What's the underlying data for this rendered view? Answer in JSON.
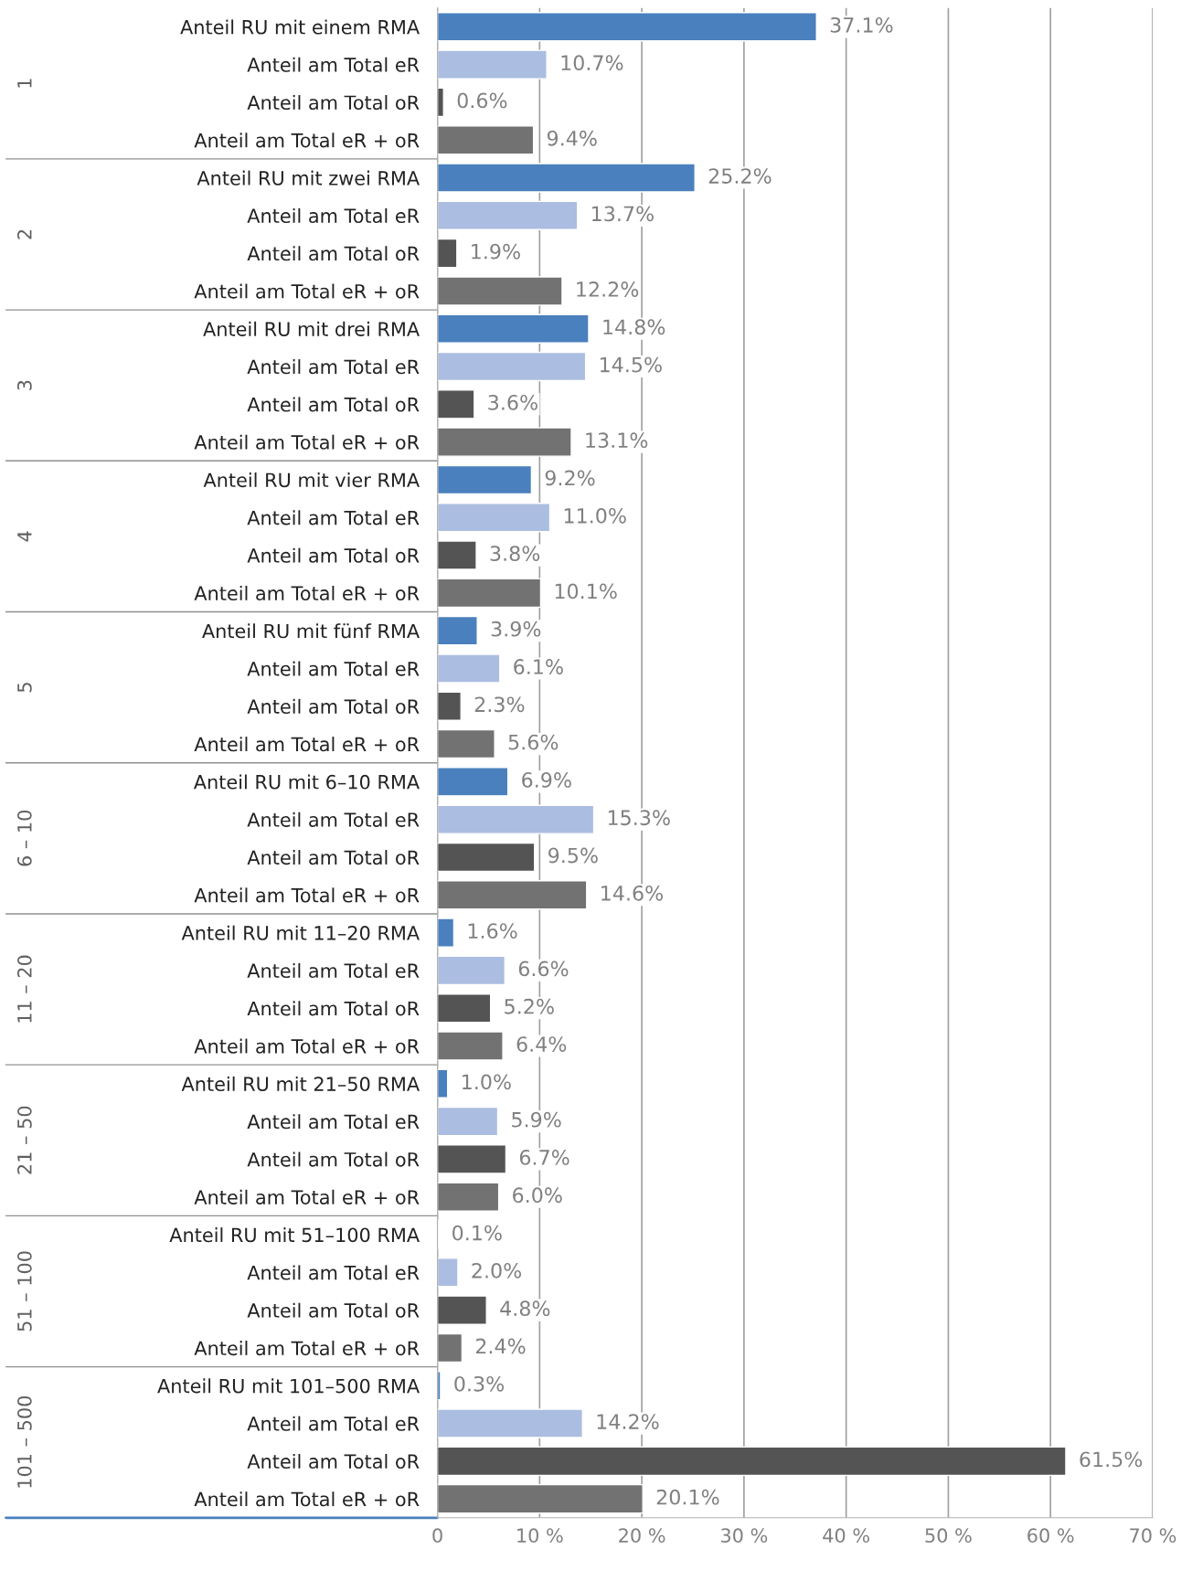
{
  "chart_data": {
    "type": "bar",
    "orientation": "horizontal",
    "categories": [
      "Anteil RU mit einem RMA",
      "Anteil am Total eR",
      "Anteil am Total oR",
      "Anteil am Total eR + oR",
      "Anteil RU mit zwei RMA",
      "Anteil am Total eR",
      "Anteil am Total oR",
      "Anteil am Total eR + oR",
      "Anteil RU mit drei RMA",
      "Anteil am Total eR",
      "Anteil am Total oR",
      "Anteil am Total eR + oR",
      "Anteil RU mit vier RMA",
      "Anteil am Total eR",
      "Anteil am Total oR",
      "Anteil am Total eR + oR",
      "Anteil RU mit fünf RMA",
      "Anteil am Total eR",
      "Anteil am Total oR",
      "Anteil am Total eR + oR",
      "Anteil RU mit 6–10 RMA",
      "Anteil am Total eR",
      "Anteil am Total oR",
      "Anteil am Total eR + oR",
      "Anteil RU mit 11–20 RMA",
      "Anteil am Total eR",
      "Anteil am Total oR",
      "Anteil am Total eR + oR",
      "Anteil RU mit 21–50 RMA",
      "Anteil am Total eR",
      "Anteil am Total oR",
      "Anteil am Total eR + oR",
      "Anteil RU mit 51–100 RMA",
      "Anteil am Total eR",
      "Anteil am Total oR",
      "Anteil am Total eR + oR",
      "Anteil RU mit 101–500 RMA",
      "Anteil am Total eR",
      "Anteil am Total oR",
      "Anteil am Total eR + oR"
    ],
    "values": [
      37.1,
      10.7,
      0.6,
      9.4,
      25.2,
      13.7,
      1.9,
      12.2,
      14.8,
      14.5,
      3.6,
      13.1,
      9.2,
      11.0,
      3.8,
      10.1,
      3.9,
      6.1,
      2.3,
      5.6,
      6.9,
      15.3,
      9.5,
      14.6,
      1.6,
      6.6,
      5.2,
      6.4,
      1.0,
      5.9,
      6.7,
      6.0,
      0.1,
      2.0,
      4.8,
      2.4,
      0.3,
      14.2,
      61.5,
      20.1
    ],
    "value_labels": [
      "37.1%",
      "10.7%",
      "0.6%",
      "9.4%",
      "25.2%",
      "13.7%",
      "1.9%",
      "12.2%",
      "14.8%",
      "14.5%",
      "3.6%",
      "13.1%",
      "9.2%",
      "11.0%",
      "3.8%",
      "10.1%",
      "3.9%",
      "6.1%",
      "2.3%",
      "5.6%",
      "6.9%",
      "15.3%",
      "9.5%",
      "14.6%",
      "1.6%",
      "6.6%",
      "5.2%",
      "6.4%",
      "1.0%",
      "5.9%",
      "6.7%",
      "6.0%",
      "0.1%",
      "2.0%",
      "4.8%",
      "2.4%",
      "0.3%",
      "14.2%",
      "61.5%",
      "20.1%"
    ],
    "colors": [
      "#4a80bd",
      "#abbde0",
      "#545454",
      "#727272",
      "#4a80bd",
      "#abbde0",
      "#545454",
      "#727272",
      "#4a80bd",
      "#abbde0",
      "#545454",
      "#727272",
      "#4a80bd",
      "#abbde0",
      "#545454",
      "#727272",
      "#4a80bd",
      "#abbde0",
      "#545454",
      "#727272",
      "#4a80bd",
      "#abbde0",
      "#545454",
      "#727272",
      "#4a80bd",
      "#abbde0",
      "#545454",
      "#727272",
      "#4a80bd",
      "#abbde0",
      "#545454",
      "#727272",
      "#4a80bd",
      "#abbde0",
      "#545454",
      "#727272",
      "#4a80bd",
      "#abbde0",
      "#545454",
      "#727272"
    ],
    "annotations": [
      "1",
      "2",
      "3",
      "4",
      "5",
      "6 – 10",
      "11 – 20",
      "21 – 50",
      "51 – 100",
      "101 – 500"
    ],
    "xlim": [
      0,
      70
    ],
    "xticks": [
      0,
      {
        "value": 10,
        "label": "10 %"
      },
      {
        "value": 20,
        "label": "20 %"
      },
      {
        "value": 30,
        "label": "30 %"
      },
      {
        "value": 40,
        "label": "40 %"
      },
      {
        "value": 50,
        "label": "50 %"
      },
      {
        "value": 60,
        "label": "60 %"
      },
      {
        "value": 70,
        "label": "70 %"
      }
    ],
    "grid": "x",
    "legend": false
  }
}
